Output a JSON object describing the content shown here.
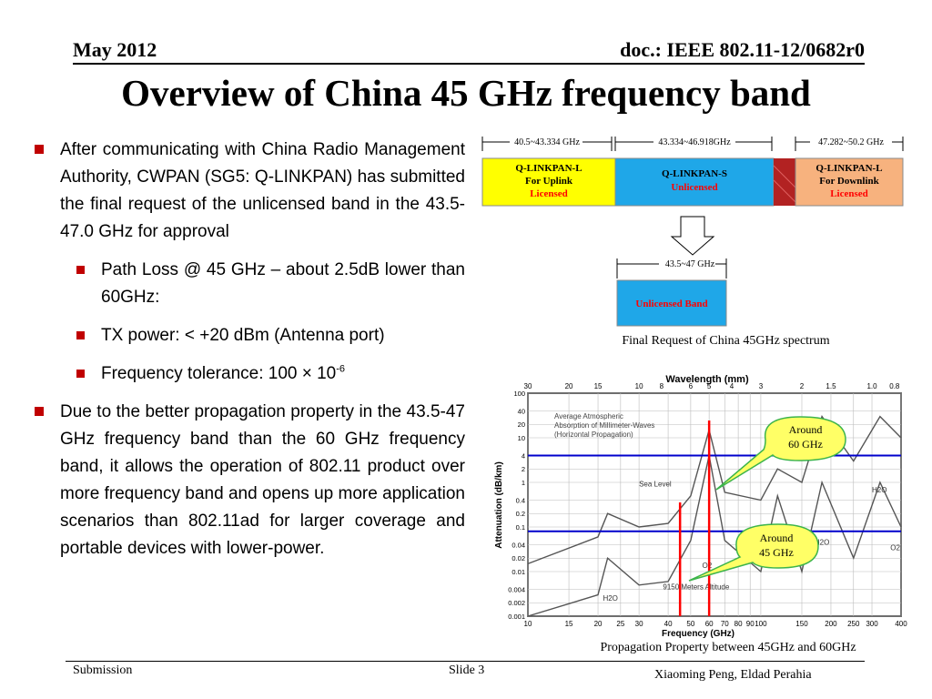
{
  "header": {
    "date": "May 2012",
    "doc": "doc.: IEEE 802.11-12/0682r0"
  },
  "title": "Overview of China 45 GHz frequency band",
  "bullets": {
    "b1": "After communicating with China Radio Management Authority, CWPAN (SG5: Q-LINKPAN) has submitted the final request of the unlicensed band in the 43.5-47.0 GHz for approval",
    "s1": "Path Loss @ 45 GHz – about 2.5dB lower than 60GHz:",
    "s2": "TX power: < +20 dBm (Antenna port)",
    "s3_pre": "Frequency tolerance: 100 × 10",
    "s3_sup": "-6",
    "b2": "Due to the better propagation property in the 43.5-47 GHz frequency band than the 60 GHz frequency band, it allows the operation of 802.11 product over more frequency band and opens up more application scenarios than 802.11ad for larger coverage and portable devices with lower-power."
  },
  "spectrum": {
    "range1": "40.5~43.334 GHz",
    "range2": "43.334~46.918GHz",
    "range3": "47.282~50.2 GHz",
    "band1": [
      "Q-LINKPAN-L",
      "For Uplink",
      "Licensed"
    ],
    "band2": [
      "Q-LINKPAN-S",
      "Unlicensed"
    ],
    "band3": [
      "Q-LINKPAN-L",
      "For Downlink",
      "Licensed"
    ],
    "final_range": "43.5~47 GHz",
    "final_band": "Unlicensed Band",
    "colors": {
      "band1": "#ffff00",
      "band2": "#1fa7e8",
      "band3": "#f7b27e",
      "gap": "#b22222",
      "final": "#1fa7e8",
      "licensed_text": "#ff0000"
    },
    "caption": "Final Request of China 45GHz spectrum"
  },
  "chart_data": {
    "type": "line",
    "title": "Wavelength (mm)",
    "xlabel": "Frequency (GHz)",
    "ylabel": "Attenuation (dB/km)",
    "x_scale": "log",
    "y_scale": "log",
    "x_ticks": [
      "10",
      "15",
      "20",
      "25",
      "30",
      "40",
      "50",
      "60",
      "70",
      "80",
      "90",
      "100",
      "150",
      "200",
      "250",
      "300",
      "400"
    ],
    "y_ticks": [
      "100",
      "40",
      "20",
      "10",
      "4",
      "2",
      "1",
      "0.4",
      "0.2",
      "0.1",
      "0.04",
      "0.02",
      "0.01",
      "0.004",
      "0.002",
      "0.001"
    ],
    "top_ticks": [
      "30",
      "20",
      "15",
      "10",
      "8",
      "6",
      "5",
      "4",
      "3",
      "2",
      "1.5",
      "1.0",
      "0.8"
    ],
    "legend": [
      "Average Atmospheric",
      "Absorption of Millimeter-Waves",
      "(Horizontal Propagation)"
    ],
    "series": [
      {
        "name": "Sea Level",
        "x": [
          10,
          20,
          22,
          30,
          40,
          50,
          60,
          70,
          100,
          118,
          150,
          183,
          250,
          325,
          400
        ],
        "y": [
          0.015,
          0.06,
          0.2,
          0.1,
          0.12,
          0.5,
          15,
          0.6,
          0.4,
          2,
          1,
          30,
          3,
          30,
          10
        ]
      },
      {
        "name": "9150 Meters Altitude",
        "x": [
          10,
          20,
          22,
          30,
          40,
          50,
          60,
          70,
          100,
          118,
          150,
          183,
          250,
          325,
          400
        ],
        "y": [
          0.001,
          0.003,
          0.02,
          0.005,
          0.006,
          0.05,
          4,
          0.05,
          0.01,
          0.5,
          0.01,
          1,
          0.02,
          1,
          0.1
        ]
      }
    ],
    "annotations": [
      "Sea Level",
      "9150 Meters Altitude",
      "H2O",
      "O2",
      "H2O",
      "O2",
      "H2O",
      "O2"
    ],
    "callouts": [
      {
        "text": [
          "Around",
          "60 GHz"
        ],
        "x": 60
      },
      {
        "text": [
          "Around",
          "45 GHz"
        ],
        "x": 45
      }
    ],
    "horizontal_lines_db_per_km": [
      4,
      0.08
    ],
    "colors": {
      "callout_fill": "#ffff66",
      "callout_border": "#3cb44b",
      "marker_line": "#ff0000",
      "ref_line": "#0000cc"
    },
    "caption": "Propagation Property between 45GHz and 60GHz"
  },
  "footer": {
    "left": "Submission",
    "center": "Slide 3",
    "right": "Xiaoming Peng, Eldad Perahia"
  }
}
